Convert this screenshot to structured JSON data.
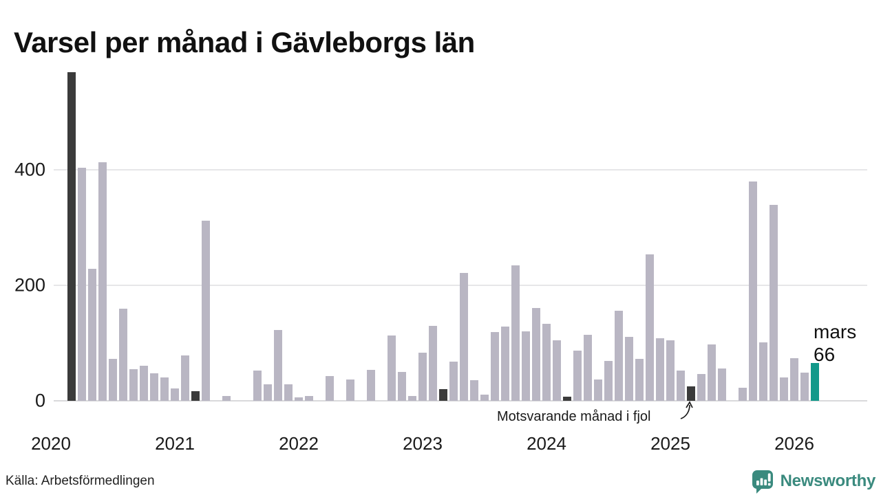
{
  "title": "Varsel per månad i Gävleborgs län",
  "source": "Källa: Arbetsförmedlingen",
  "branding": {
    "name": "Newsworthy"
  },
  "annotation": {
    "label": "Motsvarande månad i fjol"
  },
  "highlight": {
    "month": "mars",
    "value": "66"
  },
  "colors": {
    "bar_default": "#b9b6c3",
    "bar_last_year": "#3b3b3b",
    "bar_current": "#12998a",
    "brand_teal": "#3a8a7e",
    "gridline": "#e6e6e8",
    "axis_line": "#d9d9db",
    "text": "#1a1a1a"
  },
  "chart_data": {
    "type": "bar",
    "title": "Varsel per månad i Gävleborgs län",
    "xlabel": "",
    "ylabel": "",
    "start_month": "mars 2020",
    "end_month": "mars 2026",
    "months_per_slot": 1,
    "ylim": [
      0,
      569
    ],
    "yticks": [
      0,
      200,
      400
    ],
    "grid": "horizontal",
    "year_labels": [
      "2020",
      "2021",
      "2022",
      "2023",
      "2024",
      "2025",
      "2026"
    ],
    "values": [
      569,
      403,
      228,
      413,
      73,
      160,
      55,
      61,
      48,
      41,
      21,
      79,
      17,
      312,
      0,
      8,
      0,
      0,
      52,
      29,
      123,
      28,
      6,
      8,
      0,
      43,
      0,
      37,
      0,
      54,
      0,
      113,
      50,
      8,
      83,
      130,
      20,
      68,
      221,
      36,
      11,
      119,
      128,
      235,
      120,
      161,
      133,
      105,
      7,
      87,
      114,
      37,
      69,
      156,
      111,
      73,
      254,
      108,
      105,
      52,
      25,
      46,
      98,
      56,
      0,
      23,
      380,
      101,
      339,
      40,
      74,
      49,
      66
    ],
    "dark_indices": [
      0,
      12,
      24,
      36,
      48,
      60
    ],
    "highlight_index": 72,
    "legend": [
      {
        "label": "Varsel per månad",
        "color": "#b9b6c3"
      },
      {
        "label": "Motsvarande månad i fjol",
        "color": "#3b3b3b"
      },
      {
        "label": "mars 2026",
        "color": "#12998a"
      }
    ]
  }
}
